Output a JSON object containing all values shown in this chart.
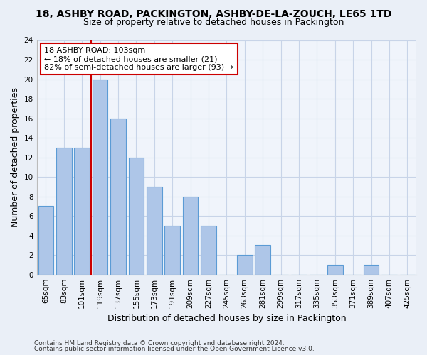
{
  "title": "18, ASHBY ROAD, PACKINGTON, ASHBY-DE-LA-ZOUCH, LE65 1TD",
  "subtitle": "Size of property relative to detached houses in Packington",
  "xlabel": "Distribution of detached houses by size in Packington",
  "ylabel": "Number of detached properties",
  "categories": [
    "65sqm",
    "83sqm",
    "101sqm",
    "119sqm",
    "137sqm",
    "155sqm",
    "173sqm",
    "191sqm",
    "209sqm",
    "227sqm",
    "245sqm",
    "263sqm",
    "281sqm",
    "299sqm",
    "317sqm",
    "335sqm",
    "353sqm",
    "371sqm",
    "389sqm",
    "407sqm",
    "425sqm"
  ],
  "values": [
    7,
    13,
    13,
    20,
    16,
    12,
    9,
    5,
    8,
    5,
    0,
    2,
    3,
    0,
    0,
    0,
    1,
    0,
    1,
    0,
    0
  ],
  "bar_color": "#aec6e8",
  "bar_edge_color": "#5b9bd5",
  "ylim": [
    0,
    24
  ],
  "yticks": [
    0,
    2,
    4,
    6,
    8,
    10,
    12,
    14,
    16,
    18,
    20,
    22,
    24
  ],
  "vline_x": 2.5,
  "vline_color": "#cc0000",
  "annotation_title": "18 ASHBY ROAD: 103sqm",
  "annotation_line1": "← 18% of detached houses are smaller (21)",
  "annotation_line2": "82% of semi-detached houses are larger (93) →",
  "annotation_box_color": "#cc0000",
  "footer1": "Contains HM Land Registry data © Crown copyright and database right 2024.",
  "footer2": "Contains public sector information licensed under the Open Government Licence v3.0.",
  "bg_color": "#eaeff7",
  "plot_bg_color": "#f0f4fb",
  "grid_color": "#c8d4e8",
  "title_fontsize": 10,
  "subtitle_fontsize": 9,
  "ylabel_fontsize": 9,
  "xlabel_fontsize": 9,
  "tick_fontsize": 7.5,
  "footer_fontsize": 6.5
}
